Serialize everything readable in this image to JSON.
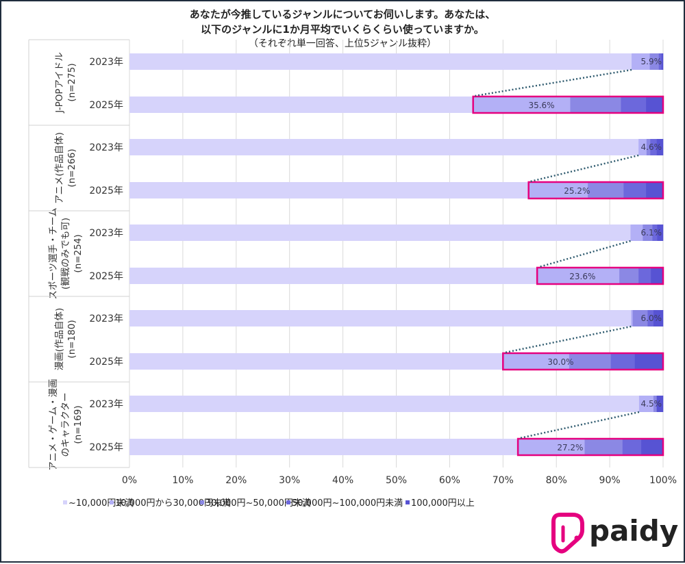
{
  "chart_data": {
    "type": "bar",
    "orientation": "horizontal-stacked-100",
    "title_lines": [
      "あなたが今推しているジャンルについてお伺いします。あなたは、",
      "以下のジャンルに1か月平均でいくらくらい使っていますか。",
      "（それぞれ単一回答、上位5ジャンル抜粋）"
    ],
    "xlim": [
      0,
      100
    ],
    "x_ticks": [
      "0%",
      "10%",
      "20%",
      "30%",
      "40%",
      "50%",
      "60%",
      "70%",
      "80%",
      "90%",
      "100%"
    ],
    "legend_position": "bottom",
    "series_names": [
      "~10,000円未満",
      "10,000円から30,000円未満",
      "30,000円~50,000円未満",
      "50,000円~100,000円未満",
      "100,000円以上"
    ],
    "series_colors": [
      "#d6d3fb",
      "#b3b0f6",
      "#8b88e4",
      "#6c68dc",
      "#5753d3"
    ],
    "highlight_color": "#e5007f",
    "connector_color": "#2e5a6e",
    "groups": [
      {
        "label_lines": [
          "J-POPアイドル",
          "(n=275)"
        ],
        "rows": [
          {
            "year": "2023年",
            "values": [
              94.1,
              3.4,
              1.7,
              0.5,
              0.3
            ],
            "label": "5.9%"
          },
          {
            "year": "2025年",
            "values": [
              64.4,
              18.2,
              9.5,
              4.7,
              3.2
            ],
            "label": "35.6%"
          }
        ]
      },
      {
        "label_lines": [
          "アニメ(作品自体)",
          "(n=266)"
        ],
        "rows": [
          {
            "year": "2023年",
            "values": [
              95.4,
              1.5,
              0.7,
              1.2,
              1.2
            ],
            "label": "4.6%"
          },
          {
            "year": "2025年",
            "values": [
              74.8,
              11.1,
              6.7,
              4.2,
              3.2
            ],
            "label": "25.2%"
          }
        ]
      },
      {
        "label_lines": [
          "スポーツ選手・チーム",
          "(観戦のみでも可)",
          "(n=254)"
        ],
        "rows": [
          {
            "year": "2023年",
            "values": [
              93.9,
              2.3,
              1.8,
              0.9,
              1.1
            ],
            "label": "6.1%"
          },
          {
            "year": "2025年",
            "values": [
              76.4,
              15.4,
              3.6,
              2.3,
              2.3
            ],
            "label": "23.6%"
          }
        ]
      },
      {
        "label_lines": [
          "漫画(作品自体)",
          "(n=180)"
        ],
        "rows": [
          {
            "year": "2023年",
            "values": [
              94.0,
              0.3,
              2.8,
              1.1,
              1.8
            ],
            "label": "6.0%"
          },
          {
            "year": "2025年",
            "values": [
              70.0,
              12.4,
              7.8,
              4.5,
              5.3
            ],
            "label": "30.0%"
          }
        ]
      },
      {
        "label_lines": [
          "アニメ・ゲーム・漫画",
          "のキャラクター",
          "(n=169)"
        ],
        "rows": [
          {
            "year": "2023年",
            "values": [
              95.5,
              2.7,
              0.6,
              0.0,
              1.2
            ],
            "label": "4.5%"
          },
          {
            "year": "2025年",
            "values": [
              72.8,
              12.5,
              7.1,
              3.5,
              4.1
            ],
            "label": "27.2%"
          }
        ]
      }
    ]
  },
  "logo": {
    "text": "paidy",
    "color": "#e5007f"
  }
}
